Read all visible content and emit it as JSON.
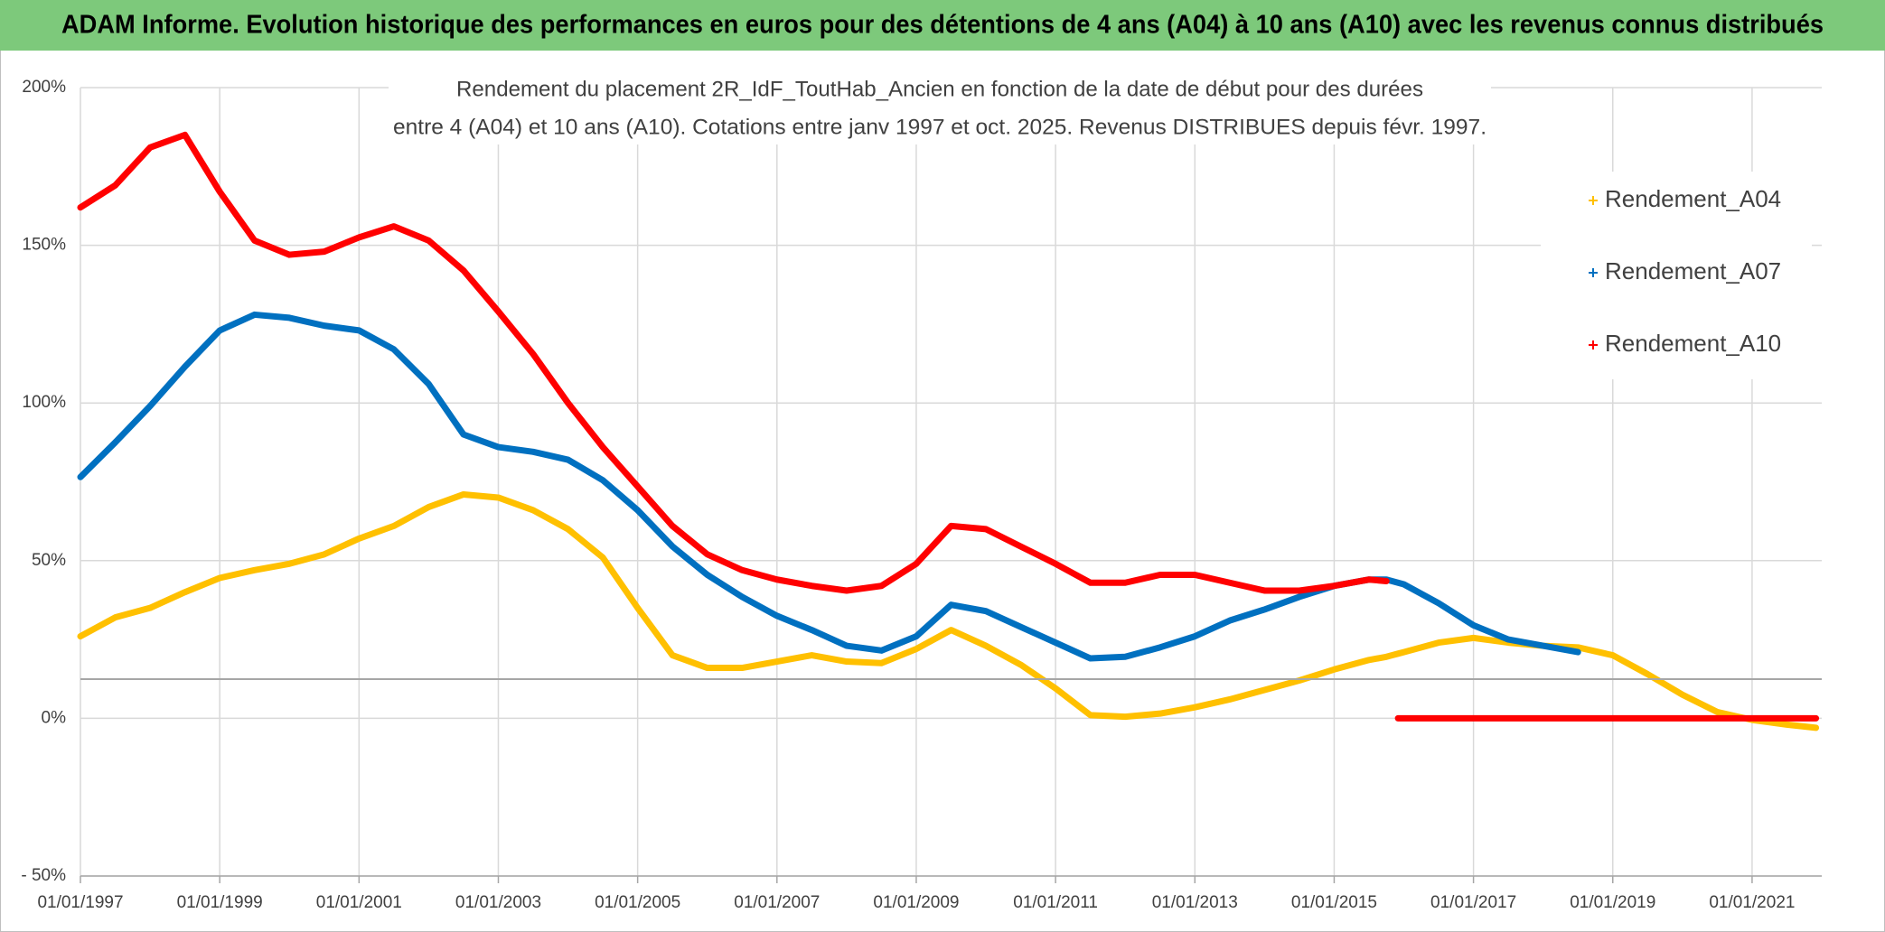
{
  "header": {
    "title": "ADAM Informe. Evolution historique des performances en euros pour des détentions de 4 ans (A04) à 10 ans (A10) avec les revenus connus distribués"
  },
  "chart_data": {
    "type": "line",
    "title": [
      "Rendement du placement 2R_IdF_ToutHab_Ancien en fonction de la date de début pour des durées",
      "entre 4 (A04) et 10 ans (A10). Cotations entre janv 1997 et oct. 2025. Revenus DISTRIBUES depuis févr. 1997."
    ],
    "x": [
      "01/01/1997",
      "01/07/1997",
      "01/01/1998",
      "01/07/1998",
      "01/01/1999",
      "01/07/1999",
      "01/01/2000",
      "01/07/2000",
      "01/01/2001",
      "01/07/2001",
      "01/01/2002",
      "01/07/2002",
      "01/01/2003",
      "01/07/2003",
      "01/01/2004",
      "01/07/2004",
      "01/01/2005",
      "01/07/2005",
      "01/01/2006",
      "01/07/2006",
      "01/01/2007",
      "01/07/2007",
      "01/01/2008",
      "01/07/2008",
      "01/01/2009",
      "01/07/2009",
      "01/01/2010",
      "01/07/2010",
      "01/01/2011",
      "01/07/2011",
      "01/01/2012",
      "01/07/2012",
      "01/01/2013",
      "01/07/2013",
      "01/01/2014",
      "01/07/2014",
      "01/01/2015",
      "01/07/2015",
      "01/10/2015",
      "01/11/2015",
      "01/12/2015",
      "01/01/2016",
      "01/07/2016",
      "01/01/2017",
      "01/07/2017",
      "01/01/2018",
      "01/07/2018",
      "01/01/2019",
      "01/07/2019",
      "01/01/2020",
      "01/07/2020",
      "01/01/2021",
      "01/07/2021",
      "01/12/2021"
    ],
    "series": [
      {
        "name": "Rendement_A04",
        "color": "#ffc000",
        "values": [
          26,
          32,
          35,
          40,
          44.5,
          47,
          49,
          52,
          57,
          61,
          67,
          71,
          70,
          66,
          60,
          51,
          35,
          20,
          16,
          16,
          18,
          20,
          18,
          17.5,
          22,
          28,
          23,
          17,
          9.5,
          1,
          0.5,
          1.5,
          3.5,
          6,
          9,
          12,
          15.5,
          18.5,
          19.5,
          20,
          20.5,
          21,
          24,
          25.5,
          24,
          23,
          22.5,
          20,
          14,
          7.5,
          2,
          -0.5,
          -2,
          -3
        ]
      },
      {
        "name": "Rendement_A07",
        "color": "#0070c0",
        "values": [
          76.5,
          87.5,
          99,
          111.5,
          123,
          128,
          127,
          124.5,
          123,
          117,
          106,
          90,
          86,
          84.5,
          82,
          75.5,
          66,
          54.5,
          45.5,
          38.5,
          32.5,
          28,
          23,
          21.5,
          26,
          36,
          34,
          29,
          24,
          19,
          19.5,
          22.5,
          26,
          31,
          34.5,
          38.5,
          42,
          44,
          44,
          43.5,
          43,
          42.5,
          36.5,
          29.5,
          25,
          23,
          21,
          null,
          null,
          null,
          null,
          null,
          null,
          null
        ]
      },
      {
        "name": "Rendement_A10",
        "color": "#ff0000",
        "values": [
          162,
          169,
          181,
          185,
          167,
          151.5,
          147,
          148,
          152.5,
          156,
          151.5,
          142,
          129,
          115.5,
          100,
          86,
          73.5,
          61,
          52,
          47,
          44,
          42,
          40.5,
          42,
          49,
          61,
          60,
          54.5,
          49,
          43,
          43,
          45.5,
          45.5,
          43,
          40.5,
          40.5,
          42,
          44,
          43.5,
          null,
          0,
          0,
          0,
          0,
          0,
          0,
          0,
          0,
          0,
          0,
          0,
          0,
          0,
          0
        ]
      }
    ],
    "xlim": [
      "01/01/1997",
      "01/01/2022"
    ],
    "xticks": [
      "01/01/1997",
      "01/01/1999",
      "01/01/2001",
      "01/01/2003",
      "01/01/2005",
      "01/01/2007",
      "01/01/2009",
      "01/01/2011",
      "01/01/2013",
      "01/01/2015",
      "01/01/2017",
      "01/01/2019",
      "01/01/2021"
    ],
    "ylim": [
      -50,
      200
    ],
    "yticks": [
      {
        "value": -50,
        "label": "- 50%"
      },
      {
        "value": 0,
        "label": "0%"
      },
      {
        "value": 50,
        "label": "50%"
      },
      {
        "value": 100,
        "label": "100%"
      },
      {
        "value": 150,
        "label": "150%"
      },
      {
        "value": 200,
        "label": "200%"
      }
    ],
    "grid": true,
    "legend": "right"
  }
}
